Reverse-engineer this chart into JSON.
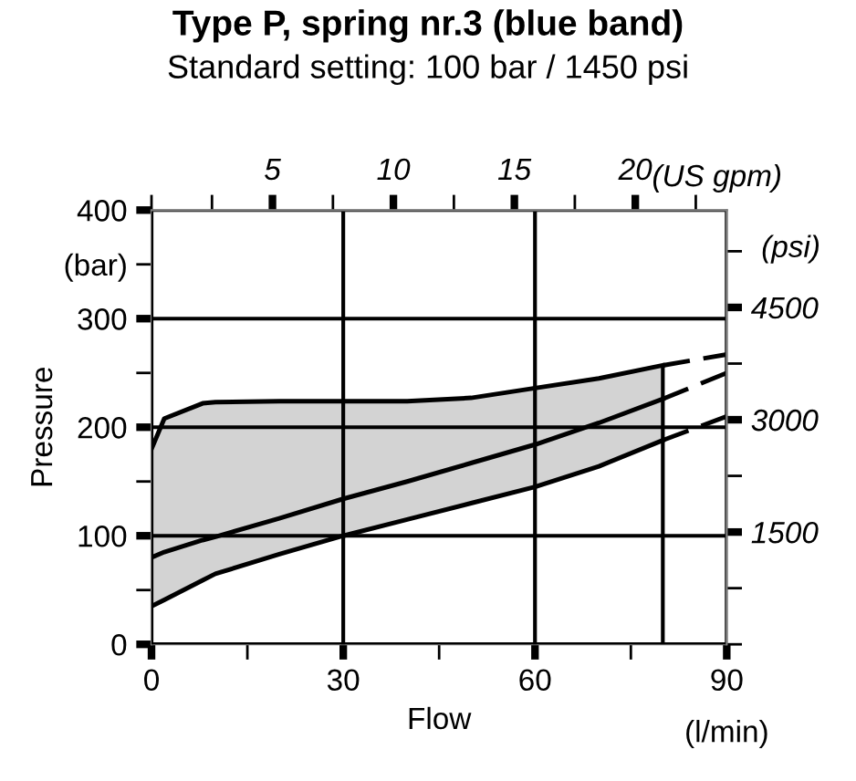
{
  "chart_data": {
    "type": "line",
    "title": "Type P, spring nr.3 (blue band)",
    "subtitle": "Standard setting: 100 bar / 1450 psi",
    "xlabel": "Flow",
    "ylabel": "Pressure",
    "x2label": "(US gpm)",
    "y2label": "(psi)",
    "annotations": [
      "(l/min)"
    ],
    "xlim": [
      0,
      90
    ],
    "xticks": [
      0,
      {
        "value": 15,
        "label": null
      },
      30,
      {
        "value": 45,
        "label": null
      },
      60,
      {
        "value": 75,
        "label": null
      },
      90
    ],
    "ylim": [
      0,
      400
    ],
    "yticks": [
      0,
      {
        "value": 50,
        "label": null
      },
      100,
      {
        "value": 150,
        "label": null
      },
      200,
      {
        "value": 250,
        "label": null
      },
      300,
      {
        "value": 350,
        "label": "(bar)"
      },
      400
    ],
    "x2lim": [
      0,
      23.78
    ],
    "x2ticks": [
      {
        "value": 0,
        "label": null
      },
      {
        "value": 2.5,
        "label": null
      },
      5,
      {
        "value": 7.5,
        "label": null
      },
      10,
      {
        "value": 12.5,
        "label": null
      },
      15,
      {
        "value": 17.5,
        "label": null
      },
      20,
      {
        "value": 22.5,
        "label": null
      }
    ],
    "y2lim": [
      0,
      5800
    ],
    "y2ticks": [
      {
        "value": 0,
        "label": null
      },
      {
        "value": 750,
        "label": null
      },
      1500,
      {
        "value": 2250,
        "label": null
      },
      3000,
      {
        "value": 3750,
        "label": null
      },
      4500,
      {
        "value": 5250,
        "label": null
      }
    ],
    "grid": true,
    "marker": "none",
    "ref_lines": [
      {
        "axis": "x",
        "value": 80,
        "color": "#000000"
      }
    ],
    "series": [
      {
        "x": [
          0,
          2,
          8,
          10,
          20,
          30,
          40,
          50,
          60,
          70,
          80
        ],
        "values": [
          80,
          85,
          96,
          99,
          116,
          134,
          150,
          167,
          184,
          204,
          226
        ],
        "lower": [
          35,
          41,
          59,
          65,
          83,
          100,
          115,
          130,
          145,
          164,
          188
        ],
        "upper": [
          180,
          208,
          222,
          223,
          224,
          224,
          224,
          227,
          236,
          245,
          257
        ],
        "color": "#000000",
        "line_style": "solid"
      },
      {
        "x": [
          0,
          2,
          8,
          10,
          20,
          30,
          40,
          50,
          60,
          70,
          80
        ],
        "values": [
          180,
          208,
          222,
          223,
          224,
          224,
          224,
          227,
          236,
          245,
          257
        ],
        "color": "#000000",
        "line_style": "solid"
      },
      {
        "x": [
          0,
          2,
          8,
          10,
          20,
          30,
          40,
          50,
          60,
          70,
          80
        ],
        "values": [
          35,
          41,
          59,
          65,
          83,
          100,
          115,
          130,
          145,
          164,
          188
        ],
        "color": "#000000",
        "line_style": "solid"
      },
      {
        "x": [
          80,
          90
        ],
        "values": [
          257,
          267
        ],
        "color": "#000000",
        "line_style": "dashed"
      },
      {
        "x": [
          80,
          90
        ],
        "values": [
          226,
          250
        ],
        "color": "#000000",
        "line_style": "dashed"
      },
      {
        "x": [
          80,
          90
        ],
        "values": [
          188,
          210
        ],
        "color": "#000000",
        "line_style": "dashed"
      }
    ]
  }
}
